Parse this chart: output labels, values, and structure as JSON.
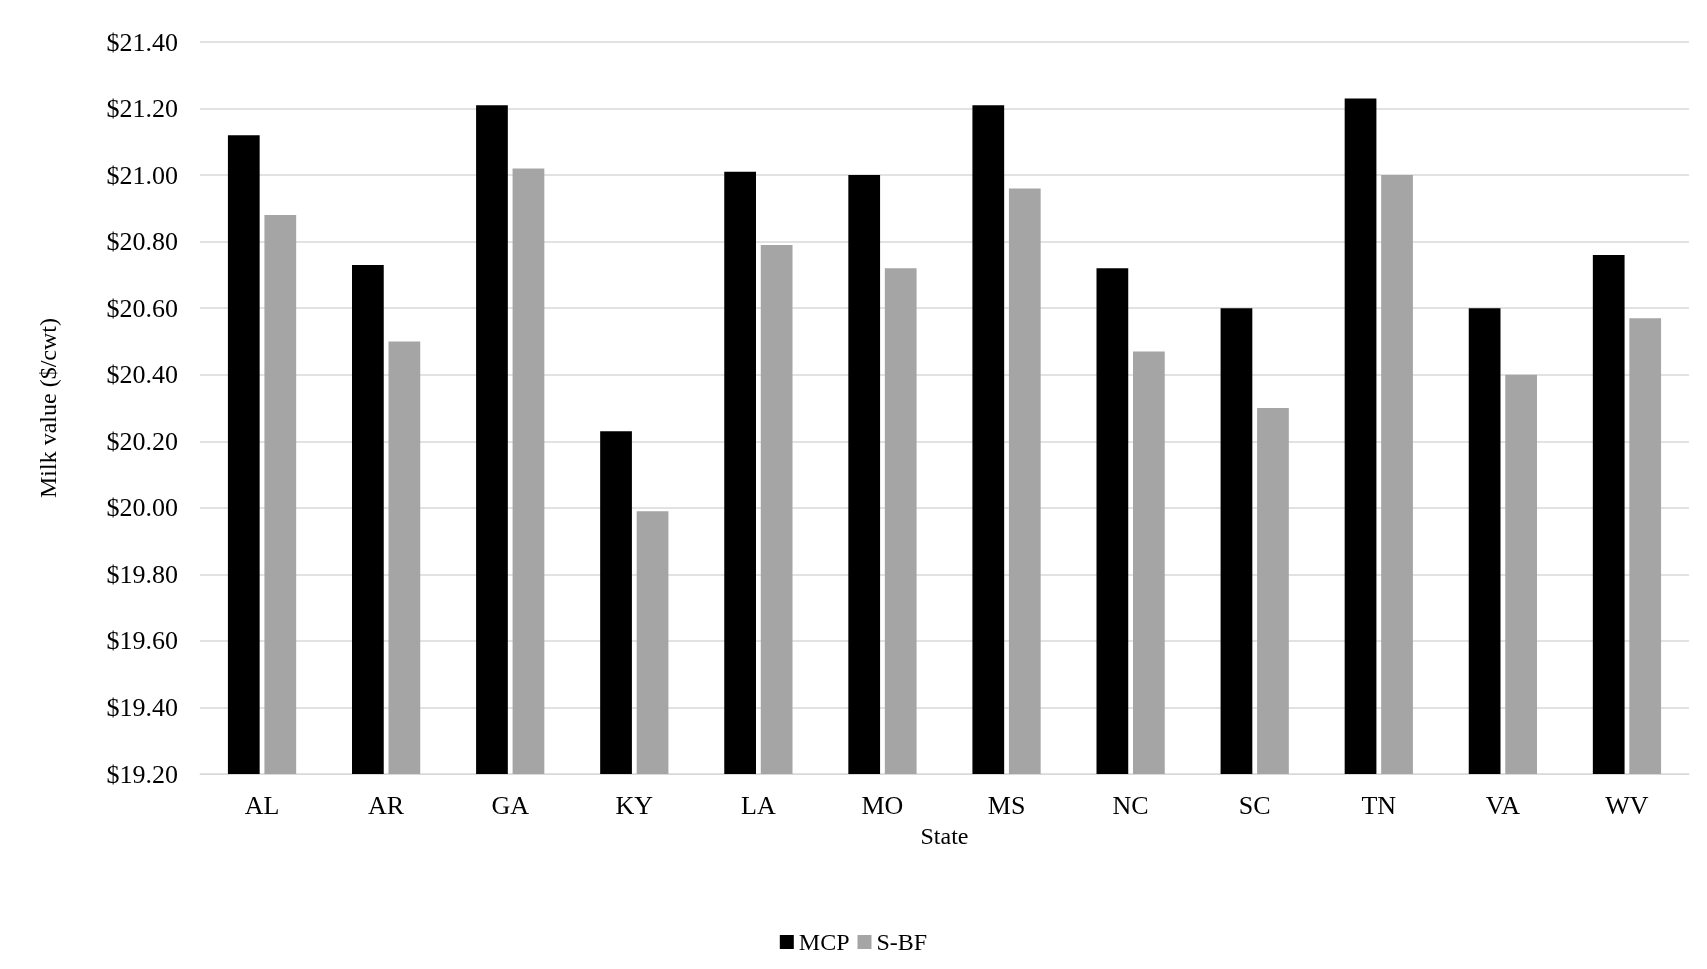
{
  "chart_data": {
    "type": "bar",
    "xlabel": "State",
    "ylabel": "Milk value ($/cwt)",
    "categories": [
      "AL",
      "AR",
      "GA",
      "KY",
      "LA",
      "MO",
      "MS",
      "NC",
      "SC",
      "TN",
      "VA",
      "WV"
    ],
    "series": [
      {
        "name": "MCP",
        "color": "#000000",
        "values": [
          21.12,
          20.73,
          21.21,
          20.23,
          21.01,
          21.0,
          21.21,
          20.72,
          20.6,
          21.23,
          20.6,
          20.76
        ]
      },
      {
        "name": "S-BF",
        "color": "#a5a5a5",
        "values": [
          20.88,
          20.5,
          21.02,
          19.99,
          20.79,
          20.72,
          20.96,
          20.47,
          20.3,
          21.0,
          20.4,
          20.57
        ]
      }
    ],
    "ylim": [
      19.2,
      21.4
    ],
    "yticks": [
      {
        "value": 19.2,
        "label": "$19.20"
      },
      {
        "value": 19.4,
        "label": "$19.40"
      },
      {
        "value": 19.6,
        "label": "$19.60"
      },
      {
        "value": 19.8,
        "label": "$19.80"
      },
      {
        "value": 20.0,
        "label": "$20.00"
      },
      {
        "value": 20.2,
        "label": "$20.20"
      },
      {
        "value": 20.4,
        "label": "$20.40"
      },
      {
        "value": 20.6,
        "label": "$20.60"
      },
      {
        "value": 20.8,
        "label": "$20.80"
      },
      {
        "value": 21.0,
        "label": "$21.00"
      },
      {
        "value": 21.2,
        "label": "$21.20"
      },
      {
        "value": 21.4,
        "label": "$21.40"
      }
    ],
    "grid": "y",
    "legend": "bottom"
  }
}
